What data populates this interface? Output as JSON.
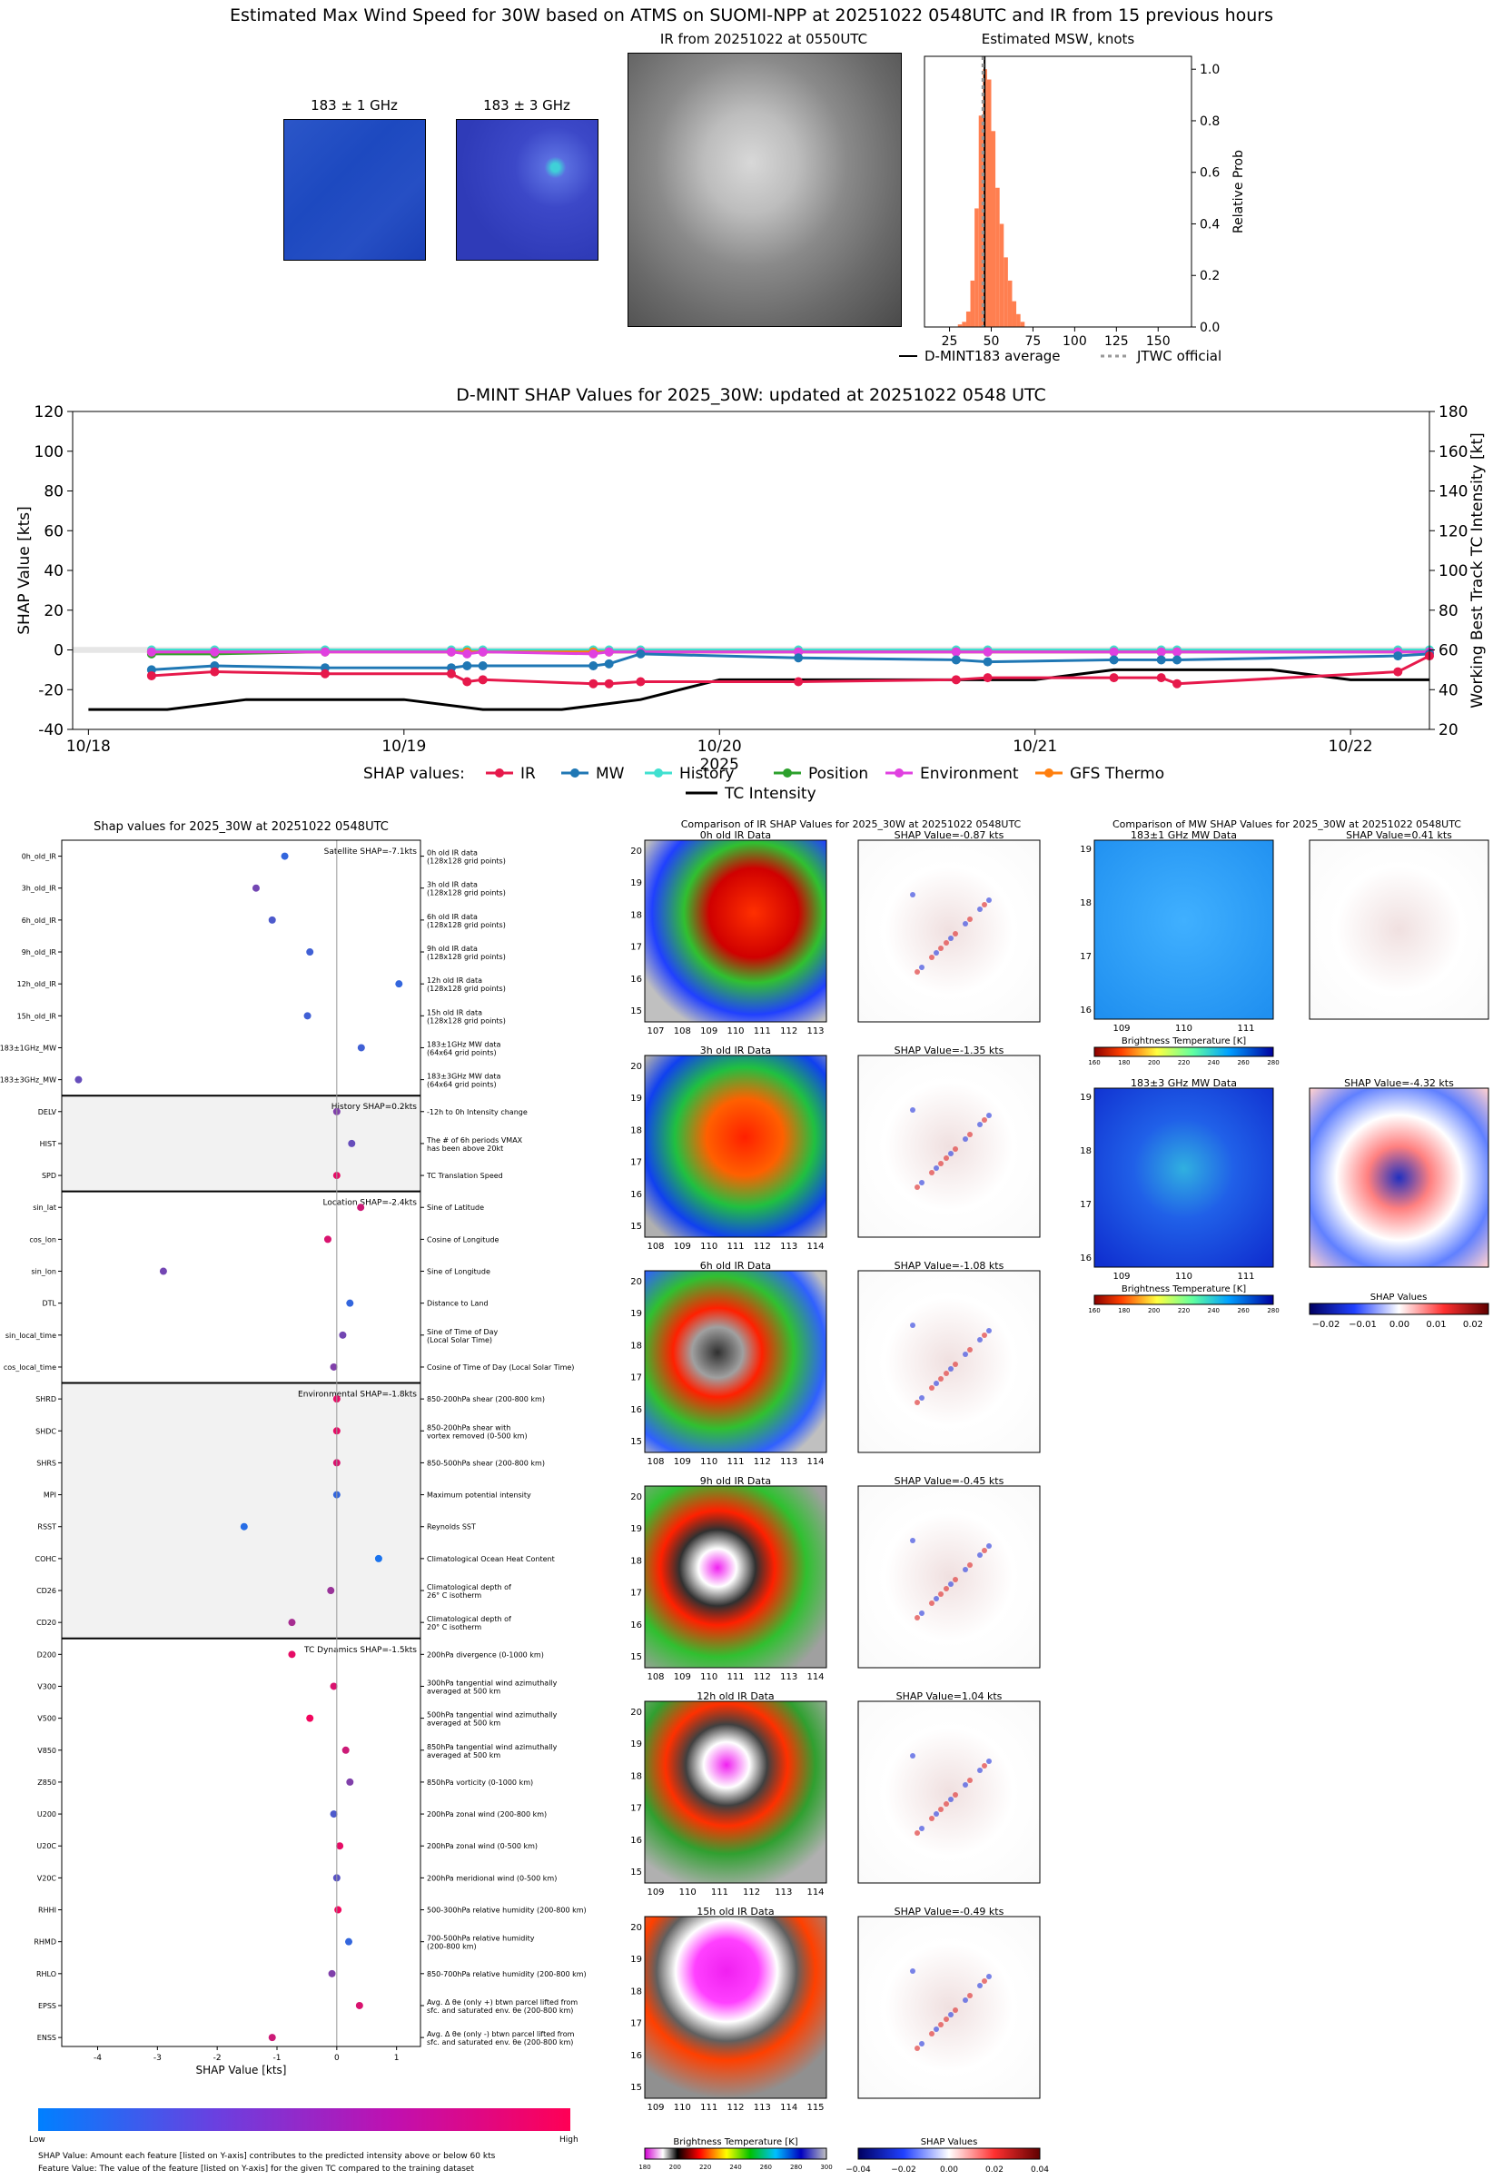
{
  "header": {
    "title": "Estimated Max Wind Speed for 30W based on ATMS on SUOMI-NPP at 20251022 0548UTC and IR from 15 previous hours",
    "mw1_label": "183 ± 1 GHz",
    "mw3_label": "183 ± 3 GHz",
    "ir_label": "IR from 20251022 at 0550UTC"
  },
  "colors": {
    "ir": "#e6194b",
    "mw": "#1f77b4",
    "history": "#40e0d0",
    "position": "#2ca02c",
    "environment": "#e040e0",
    "gfs": "#ff7f0e",
    "hist_bar": "#ff7f50",
    "feat_low": "#0080ff",
    "feat_high": "#ff0055"
  },
  "chart_data": [
    {
      "id": "msw_hist",
      "type": "bar",
      "title": "Estimated MSW, knots",
      "ylabel": "Relative Prob",
      "xlim": [
        10,
        170
      ],
      "ylim": [
        0,
        1.05
      ],
      "xticks": [
        25,
        50,
        75,
        100,
        125,
        150
      ],
      "yticks": [
        "0.0",
        "0.2",
        "0.4",
        "0.6",
        "0.8",
        "1.0"
      ],
      "bin_width": 2.5,
      "x": [
        30,
        32.5,
        35,
        37.5,
        40,
        42.5,
        45,
        47.5,
        50,
        52.5,
        55,
        57.5,
        60,
        62.5,
        65,
        67.5
      ],
      "values": [
        0.01,
        0.02,
        0.06,
        0.18,
        0.46,
        0.82,
        1.0,
        0.96,
        0.76,
        0.54,
        0.4,
        0.27,
        0.18,
        0.1,
        0.05,
        0.02
      ],
      "dmint_average": 46,
      "jtwc_official": 45,
      "legend": [
        "D-MINT183 average",
        "JTWC official"
      ]
    },
    {
      "id": "shap_timeseries",
      "type": "line",
      "title": "D-MINT SHAP Values for 2025_30W: updated at 20251022 0548 UTC",
      "xlabel": "2025",
      "ylabel": "SHAP Value [kts]",
      "y2label": "Working Best Track TC Intensity [kt]",
      "xlim": [
        -0.05,
        4.25
      ],
      "ylim": [
        -40,
        120
      ],
      "y2lim": [
        20,
        180
      ],
      "xticks": [
        "10/18",
        "10/19",
        "10/20",
        "10/21",
        "10/22"
      ],
      "yticks": [
        -40,
        -20,
        0,
        20,
        40,
        60,
        80,
        100,
        120
      ],
      "y2ticks": [
        20,
        40,
        60,
        80,
        100,
        120,
        140,
        160,
        180
      ],
      "x": [
        0.2,
        0.4,
        0.75,
        1.15,
        1.2,
        1.25,
        1.6,
        1.65,
        1.75,
        2.25,
        2.75,
        2.85,
        3.25,
        3.4,
        3.45,
        4.15,
        4.25
      ],
      "series": [
        {
          "name": "IR",
          "values": [
            -13,
            -11,
            -12,
            -12,
            -16,
            -15,
            -17,
            -17,
            -16,
            -16,
            -15,
            -14,
            -14,
            -14,
            -17,
            -11,
            -3
          ]
        },
        {
          "name": "MW",
          "values": [
            -10,
            -8,
            -9,
            -9,
            -8,
            -8,
            -8,
            -7,
            -2,
            -4,
            -5,
            -6,
            -5,
            -5,
            -5,
            -3,
            -2
          ]
        },
        {
          "name": "History",
          "values": [
            0,
            0,
            0,
            0,
            0,
            0,
            0,
            0,
            0,
            0,
            0,
            0,
            0,
            0,
            0,
            0,
            0
          ]
        },
        {
          "name": "Position",
          "values": [
            -2,
            -2,
            -1,
            -1,
            -1,
            -1,
            -1,
            -1,
            -1,
            -1,
            -1,
            -1,
            -1,
            -1,
            -1,
            -1,
            -1
          ]
        },
        {
          "name": "Environment",
          "values": [
            -1,
            -1,
            -1,
            -1,
            -2,
            -1,
            -2,
            -1,
            -1,
            -1,
            -1,
            -1,
            -1,
            -1,
            -1,
            -1,
            -1
          ]
        },
        {
          "name": "GFS Thermo",
          "values": [
            -1,
            -1,
            -1,
            -1,
            -1,
            -1,
            -1,
            -1,
            -1,
            -1,
            -1,
            -1,
            -1,
            -1,
            -1,
            -1,
            -1
          ]
        }
      ],
      "tc_intensity": {
        "name": "TC Intensity",
        "x": [
          0,
          0.25,
          0.5,
          1.0,
          1.25,
          1.5,
          1.75,
          2.0,
          2.5,
          2.75,
          3.0,
          3.25,
          3.5,
          3.75,
          4.0,
          4.25
        ],
        "values": [
          30,
          30,
          35,
          35,
          30,
          30,
          35,
          45,
          45,
          45,
          45,
          50,
          50,
          50,
          45,
          45
        ]
      },
      "legend_title": "SHAP values:",
      "legend": [
        "IR",
        "MW",
        "History",
        "Position",
        "Environment",
        "GFS Thermo",
        "TC Intensity"
      ]
    },
    {
      "id": "feature_shap",
      "type": "scatter",
      "title": "Shap values for 2025_30W at 20251022 0548UTC",
      "xlabel": "SHAP Value [kts]",
      "xlim": [
        -4.6,
        1.4
      ],
      "xticks": [
        -4,
        -3,
        -2,
        -1,
        0,
        1
      ],
      "groups": [
        {
          "title": "Satellite SHAP=-7.1kts",
          "shaded": false,
          "features": [
            {
              "name": "0h_old_IR",
              "desc": "0h old IR data\n(128x128 grid points)",
              "value": -0.87,
              "fv": 0.2
            },
            {
              "name": "3h_old_IR",
              "desc": "3h old IR data\n(128x128 grid points)",
              "value": -1.35,
              "fv": 0.45
            },
            {
              "name": "6h_old_IR",
              "desc": "6h old IR data\n(128x128 grid points)",
              "value": -1.08,
              "fv": 0.3
            },
            {
              "name": "9h_old_IR",
              "desc": "9h old IR data\n(128x128 grid points)",
              "value": -0.45,
              "fv": 0.25
            },
            {
              "name": "12h_old_IR",
              "desc": "12h old IR data\n(128x128 grid points)",
              "value": 1.04,
              "fv": 0.2
            },
            {
              "name": "15h_old_IR",
              "desc": "15h old IR data\n(128x128 grid points)",
              "value": -0.49,
              "fv": 0.25
            },
            {
              "name": "183±1GHz_MW",
              "desc": "183±1GHz MW data\n(64x64 grid points)",
              "value": 0.41,
              "fv": 0.25
            },
            {
              "name": "183±3GHz_MW",
              "desc": "183±3GHz MW data\n(64x64 grid points)",
              "value": -4.32,
              "fv": 0.4
            }
          ]
        },
        {
          "title": "History SHAP=0.2kts",
          "shaded": true,
          "features": [
            {
              "name": "DELV",
              "desc": "-12h to 0h Intensity change",
              "value": 0.0,
              "fv": 0.5
            },
            {
              "name": "HIST",
              "desc": "The # of 6h periods VMAX\nhas been above 20kt",
              "value": 0.25,
              "fv": 0.4
            },
            {
              "name": "SPD",
              "desc": "TC Translation Speed",
              "value": 0.0,
              "fv": 0.9
            }
          ]
        },
        {
          "title": "Location SHAP=-2.4kts",
          "shaded": false,
          "features": [
            {
              "name": "sin_lat",
              "desc": "Sine of Latitude",
              "value": 0.4,
              "fv": 0.8
            },
            {
              "name": "cos_lon",
              "desc": "Cosine of Longitude",
              "value": -0.15,
              "fv": 0.85
            },
            {
              "name": "sin_lon",
              "desc": "Sine of Longitude",
              "value": -2.9,
              "fv": 0.45
            },
            {
              "name": "DTL",
              "desc": "Distance to Land",
              "value": 0.22,
              "fv": 0.2
            },
            {
              "name": "sin_local_time",
              "desc": "Sine of Time of Day\n(Local Solar Time)",
              "value": 0.1,
              "fv": 0.45
            },
            {
              "name": "cos_local_time",
              "desc": "Cosine of Time of Day (Local Solar Time)",
              "value": -0.05,
              "fv": 0.5
            }
          ]
        },
        {
          "title": "Environmental SHAP=-1.8kts",
          "shaded": true,
          "features": [
            {
              "name": "SHRD",
              "desc": "850-200hPa shear (200-800 km)",
              "value": 0.0,
              "fv": 0.9
            },
            {
              "name": "SHDC",
              "desc": "850-200hPa shear with\nvortex removed (0-500 km)",
              "value": 0.0,
              "fv": 0.9
            },
            {
              "name": "SHRS",
              "desc": "850-500hPa shear (200-800 km)",
              "value": 0.0,
              "fv": 0.85
            },
            {
              "name": "MPI",
              "desc": "Maximum potential intensity",
              "value": 0.0,
              "fv": 0.2
            },
            {
              "name": "RSST",
              "desc": "Reynolds SST",
              "value": -1.55,
              "fv": 0.15
            },
            {
              "name": "COHC",
              "desc": "Climatological Ocean Heat Content",
              "value": 0.7,
              "fv": 0.1
            },
            {
              "name": "CD26",
              "desc": "Climatological depth of\n26° C isotherm",
              "value": -0.1,
              "fv": 0.6
            },
            {
              "name": "CD20",
              "desc": "Climatological depth of\n20° C isotherm",
              "value": -0.75,
              "fv": 0.65
            }
          ]
        },
        {
          "title": "TC Dynamics SHAP=-1.5kts",
          "shaded": false,
          "features": [
            {
              "name": "D200",
              "desc": "200hPa divergence (0-1000 km)",
              "value": -0.75,
              "fv": 0.9
            },
            {
              "name": "V300",
              "desc": "300hPa tangential wind azimuthally\naveraged at 500 km",
              "value": -0.05,
              "fv": 0.85
            },
            {
              "name": "V500",
              "desc": "500hPa tangential wind azimuthally\naveraged at 500 km",
              "value": -0.45,
              "fv": 0.95
            },
            {
              "name": "V850",
              "desc": "850hPa tangential wind azimuthally\naveraged at 500 km",
              "value": 0.15,
              "fv": 0.8
            },
            {
              "name": "Z850",
              "desc": "850hPa vorticity (0-1000 km)",
              "value": 0.22,
              "fv": 0.5
            },
            {
              "name": "U200",
              "desc": "200hPa zonal wind (200-800 km)",
              "value": -0.05,
              "fv": 0.3
            },
            {
              "name": "U20C",
              "desc": "200hPa zonal wind (0-500 km)",
              "value": 0.05,
              "fv": 0.9
            },
            {
              "name": "V20C",
              "desc": "200hPa meridional wind (0-500 km)",
              "value": 0.0,
              "fv": 0.35
            },
            {
              "name": "RHHI",
              "desc": "500-300hPa relative humidity (200-800 km)",
              "value": 0.02,
              "fv": 0.95
            },
            {
              "name": "RHMD",
              "desc": "700-500hPa relative humidity\n(200-800 km)",
              "value": 0.2,
              "fv": 0.2
            },
            {
              "name": "RHLO",
              "desc": "850-700hPa relative humidity (200-800 km)",
              "value": -0.08,
              "fv": 0.5
            },
            {
              "name": "EPSS",
              "desc": "Avg. Δ θe (only +) btwn parcel lifted from\nsfc. and saturated env. θe (200-800 km)",
              "value": 0.38,
              "fv": 0.85
            },
            {
              "name": "ENSS",
              "desc": "Avg. Δ θe (only -) btwn parcel lifted from\nsfc. and saturated env. θe (200-800 km)",
              "value": -1.08,
              "fv": 0.8
            }
          ]
        }
      ]
    }
  ],
  "colorbar": {
    "low": "Low",
    "high": "High"
  },
  "notes": {
    "line1": "SHAP Value: Amount each feature [listed on Y-axis] contributes to the predicted intensity above or below 60 kts",
    "line2": "Feature Value: The value of the feature [listed on Y-axis] for the given TC compared to the training dataset"
  },
  "ir_comparison": {
    "title": "Comparison of IR SHAP Values for 2025_30W at 20251022 0548UTC",
    "rows": [
      {
        "label": "0h old IR Data",
        "shap": "SHAP Value=-0.87 kts",
        "xticks": [
          "107",
          "108",
          "109",
          "110",
          "111",
          "112",
          "113"
        ],
        "yticks": [
          "20",
          "19",
          "18",
          "17",
          "16",
          "15"
        ]
      },
      {
        "label": "3h old IR Data",
        "shap": "SHAP Value=-1.35 kts",
        "xticks": [
          "108",
          "109",
          "110",
          "111",
          "112",
          "113",
          "114"
        ],
        "yticks": [
          "20",
          "19",
          "18",
          "17",
          "16",
          "15"
        ]
      },
      {
        "label": "6h old IR Data",
        "shap": "SHAP Value=-1.08 kts",
        "xticks": [
          "108",
          "109",
          "110",
          "111",
          "112",
          "113",
          "114"
        ],
        "yticks": [
          "20",
          "19",
          "18",
          "17",
          "16",
          "15"
        ]
      },
      {
        "label": "9h old IR Data",
        "shap": "SHAP Value=-0.45 kts",
        "xticks": [
          "108",
          "109",
          "110",
          "111",
          "112",
          "113",
          "114"
        ],
        "yticks": [
          "20",
          "19",
          "18",
          "17",
          "16",
          "15"
        ]
      },
      {
        "label": "12h old IR Data",
        "shap": "SHAP Value=1.04 kts",
        "xticks": [
          "109",
          "110",
          "111",
          "112",
          "113",
          "114"
        ],
        "yticks": [
          "20",
          "19",
          "18",
          "17",
          "16",
          "15"
        ]
      },
      {
        "label": "15h old IR Data",
        "shap": "SHAP Value=-0.49 kts",
        "xticks": [
          "109",
          "110",
          "111",
          "112",
          "113",
          "114",
          "115"
        ],
        "yticks": [
          "20",
          "19",
          "18",
          "17",
          "16",
          "15"
        ]
      }
    ],
    "bt_label": "Brightness Temperature [K]",
    "bt_ticks": [
      "180",
      "200",
      "220",
      "240",
      "260",
      "280",
      "300"
    ],
    "shap_label": "SHAP Values",
    "shap_ticks": [
      "−0.04",
      "−0.02",
      "0.00",
      "0.02",
      "0.04"
    ]
  },
  "mw_comparison": {
    "title": "Comparison of MW SHAP Values for 2025_30W at 20251022 0548UTC",
    "rows": [
      {
        "label": "183±1 GHz MW Data",
        "shap": "SHAP Value=0.41 kts",
        "xticks": [
          "109",
          "110",
          "111"
        ],
        "yticks": [
          "19",
          "18",
          "17",
          "16"
        ]
      },
      {
        "label": "183±3 GHz MW Data",
        "shap": "SHAP Value=-4.32 kts",
        "xticks": [
          "109",
          "110",
          "111"
        ],
        "yticks": [
          "19",
          "18",
          "17",
          "16"
        ]
      }
    ],
    "bt_label": "Brightness Temperature [K]",
    "bt_ticks": [
      "160",
      "180",
      "200",
      "220",
      "240",
      "260",
      "280"
    ],
    "shap_label": "SHAP Values",
    "shap_ticks": [
      "−0.02",
      "−0.01",
      "0.00",
      "0.01",
      "0.02"
    ]
  }
}
